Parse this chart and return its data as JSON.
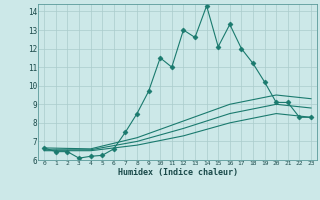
{
  "xlabel": "Humidex (Indice chaleur)",
  "bg_color": "#cce8e8",
  "grid_color": "#aacccc",
  "line_color": "#1a7a6e",
  "xlim": [
    -0.5,
    23.5
  ],
  "ylim": [
    6,
    14.4
  ],
  "xticks": [
    0,
    1,
    2,
    3,
    4,
    5,
    6,
    7,
    8,
    9,
    10,
    11,
    12,
    13,
    14,
    15,
    16,
    17,
    18,
    19,
    20,
    21,
    22,
    23
  ],
  "yticks": [
    6,
    7,
    8,
    9,
    10,
    11,
    12,
    13,
    14
  ],
  "series": [
    {
      "x": [
        0,
        1,
        2,
        3,
        4,
        5,
        6,
        7,
        8,
        9,
        10,
        11,
        12,
        13,
        14,
        15,
        16,
        17,
        18,
        19,
        20,
        21,
        22,
        23
      ],
      "y": [
        6.65,
        6.45,
        6.45,
        6.1,
        6.2,
        6.25,
        6.6,
        7.5,
        8.5,
        9.7,
        11.5,
        11.0,
        13.0,
        12.6,
        14.3,
        12.1,
        13.3,
        12.0,
        11.2,
        10.2,
        9.1,
        9.1,
        8.3,
        8.3
      ],
      "marker": "D",
      "markersize": 2.5,
      "lw": 0.8
    },
    {
      "x": [
        0,
        4,
        8,
        12,
        16,
        20,
        23
      ],
      "y": [
        6.65,
        6.6,
        7.2,
        8.1,
        9.0,
        9.5,
        9.3
      ],
      "marker": null,
      "lw": 0.8
    },
    {
      "x": [
        0,
        4,
        8,
        12,
        16,
        20,
        23
      ],
      "y": [
        6.55,
        6.55,
        7.0,
        7.7,
        8.5,
        9.0,
        8.8
      ],
      "marker": null,
      "lw": 0.8
    },
    {
      "x": [
        0,
        4,
        8,
        12,
        16,
        20,
        23
      ],
      "y": [
        6.5,
        6.5,
        6.8,
        7.3,
        8.0,
        8.5,
        8.3
      ],
      "marker": null,
      "lw": 0.8
    }
  ]
}
